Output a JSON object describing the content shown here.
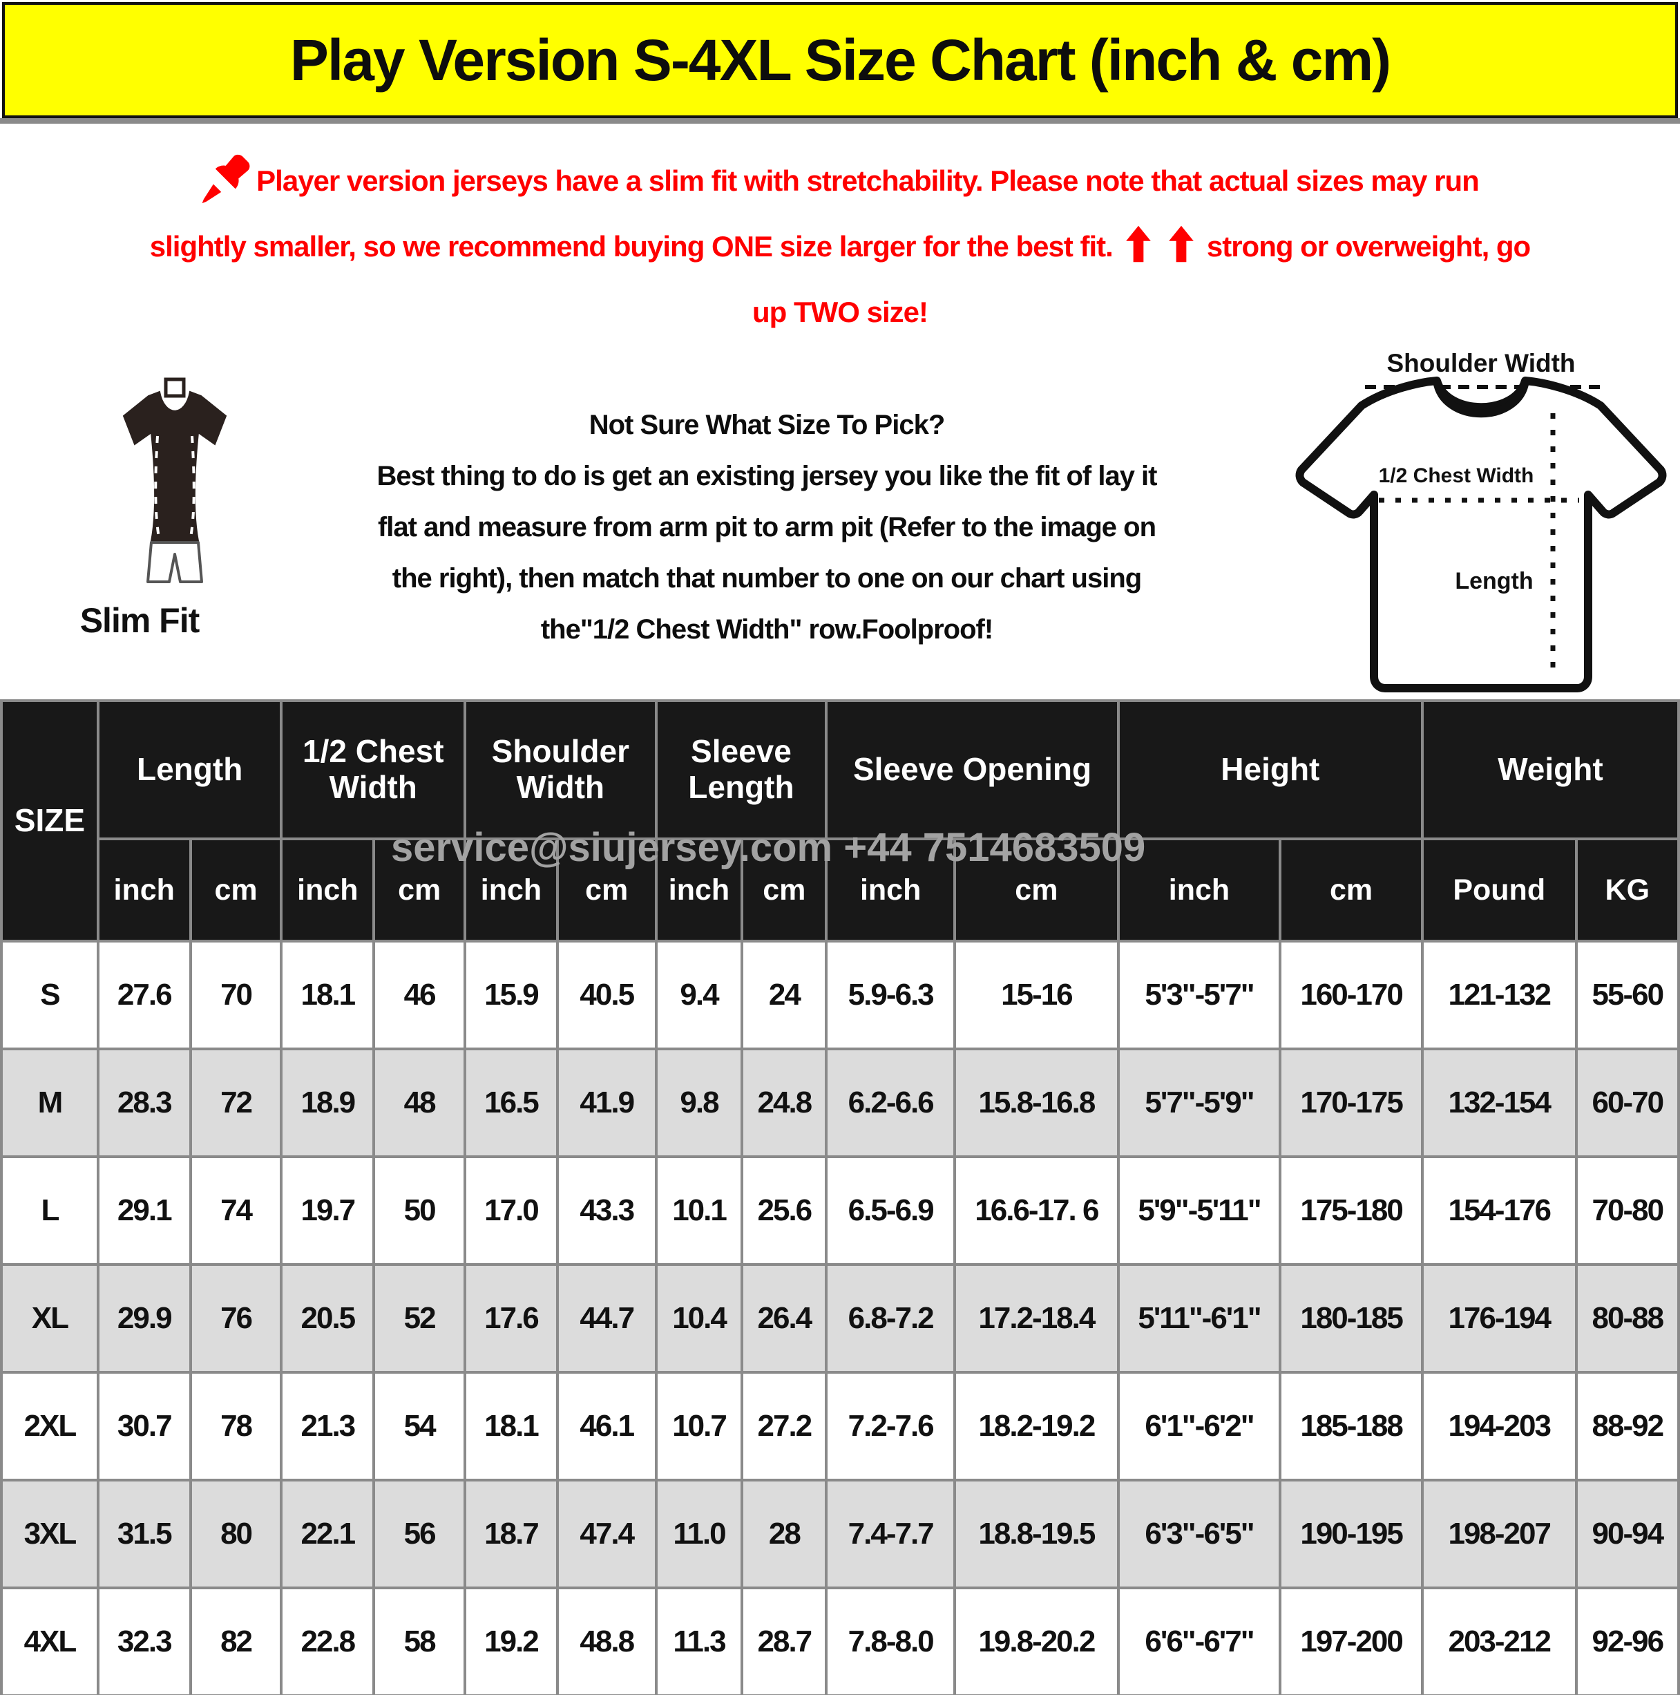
{
  "title": "Play Version S-4XL Size Chart (inch & cm)",
  "warning": {
    "line1": "Player version jerseys have a slim fit with stretchability. Please note that actual sizes may run",
    "line2_pre": "slightly smaller, so we recommend buying ONE size larger for the best fit.",
    "line2_post": "strong or overweight, go",
    "line3": "up TWO size!"
  },
  "fit": {
    "label": "Slim Fit"
  },
  "help": {
    "line1": "Not Sure What Size To Pick?",
    "line2": "Best thing to do is get an existing jersey you like the fit of lay it",
    "line3": "flat and measure from arm pit to arm pit (Refer to the image on",
    "line4": "the right), then match that number to one on our chart using",
    "line5": "the\"1/2 Chest Width\" row.Foolproof!"
  },
  "diagram": {
    "shoulder_label": "Shoulder Width",
    "chest_label": "1/2 Chest Width",
    "length_label": "Length"
  },
  "watermark": "service@siujersey.com  +44 7514683509",
  "table": {
    "size_header": "SIZE",
    "groups": [
      {
        "label": "Length",
        "units": [
          "inch",
          "cm"
        ]
      },
      {
        "label": "1/2 Chest Width",
        "units": [
          "inch",
          "cm"
        ]
      },
      {
        "label": "Shoulder Width",
        "units": [
          "inch",
          "cm"
        ]
      },
      {
        "label": "Sleeve Length",
        "units": [
          "inch",
          "cm"
        ]
      },
      {
        "label": "Sleeve Opening",
        "units": [
          "inch",
          "cm"
        ]
      },
      {
        "label": "Height",
        "units": [
          "inch",
          "cm"
        ]
      },
      {
        "label": "Weight",
        "units": [
          "Pound",
          "KG"
        ]
      }
    ],
    "rows": [
      {
        "size": "S",
        "values": [
          "27.6",
          "70",
          "18.1",
          "46",
          "15.9",
          "40.5",
          "9.4",
          "24",
          "5.9-6.3",
          "15-16",
          "5'3\"-5'7\"",
          "160-170",
          "121-132",
          "55-60"
        ]
      },
      {
        "size": "M",
        "values": [
          "28.3",
          "72",
          "18.9",
          "48",
          "16.5",
          "41.9",
          "9.8",
          "24.8",
          "6.2-6.6",
          "15.8-16.8",
          "5'7\"-5'9\"",
          "170-175",
          "132-154",
          "60-70"
        ]
      },
      {
        "size": "L",
        "values": [
          "29.1",
          "74",
          "19.7",
          "50",
          "17.0",
          "43.3",
          "10.1",
          "25.6",
          "6.5-6.9",
          "16.6-17. 6",
          "5'9\"-5'11\"",
          "175-180",
          "154-176",
          "70-80"
        ]
      },
      {
        "size": "XL",
        "values": [
          "29.9",
          "76",
          "20.5",
          "52",
          "17.6",
          "44.7",
          "10.4",
          "26.4",
          "6.8-7.2",
          "17.2-18.4",
          "5'11\"-6'1\"",
          "180-185",
          "176-194",
          "80-88"
        ]
      },
      {
        "size": "2XL",
        "values": [
          "30.7",
          "78",
          "21.3",
          "54",
          "18.1",
          "46.1",
          "10.7",
          "27.2",
          "7.2-7.6",
          "18.2-19.2",
          "6'1\"-6'2\"",
          "185-188",
          "194-203",
          "88-92"
        ]
      },
      {
        "size": "3XL",
        "values": [
          "31.5",
          "80",
          "22.1",
          "56",
          "18.7",
          "47.4",
          "11.0",
          "28",
          "7.4-7.7",
          "18.8-19.5",
          "6'3\"-6'5\"",
          "190-195",
          "198-207",
          "90-94"
        ]
      },
      {
        "size": "4XL",
        "values": [
          "32.3",
          "82",
          "22.8",
          "58",
          "19.2",
          "48.8",
          "11.3",
          "28.7",
          "7.8-8.0",
          "19.8-20.2",
          "6'6\"-6'7\"",
          "197-200",
          "203-212",
          "92-96"
        ]
      }
    ]
  }
}
